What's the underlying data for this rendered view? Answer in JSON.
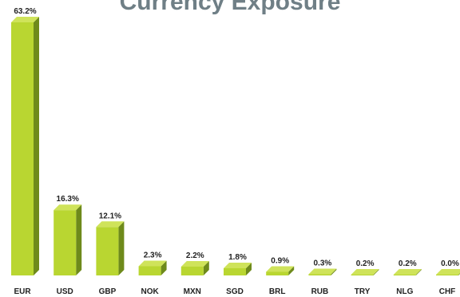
{
  "chart_data": {
    "type": "bar",
    "title": "Currency Exposure",
    "categories": [
      "EUR",
      "USD",
      "GBP",
      "NOK",
      "MXN",
      "SGD",
      "BRL",
      "RUB",
      "TRY",
      "NLG",
      "CHF"
    ],
    "values": [
      63.2,
      16.3,
      12.1,
      2.3,
      2.2,
      1.8,
      0.9,
      0.3,
      0.2,
      0.2,
      0.0
    ],
    "data_labels": [
      "63.2%",
      "16.3%",
      "12.1%",
      "2.3%",
      "2.2%",
      "1.8%",
      "0.9%",
      "0.3%",
      "0.2%",
      "0.2%",
      "0.0%"
    ],
    "xlabel": "",
    "ylabel": "",
    "ylim": [
      0,
      63.2
    ],
    "grid": false,
    "legend": "none",
    "style": "3d-bars",
    "colors": {
      "bar_front": "#b9d631",
      "bar_side": "#6e8a1b",
      "bar_top": "#cfe35a",
      "title": "#6f7f86",
      "text": "#222222"
    }
  }
}
